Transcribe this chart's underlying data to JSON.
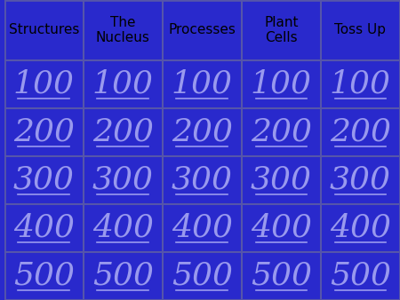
{
  "categories": [
    "Structures",
    "The\nNucleus",
    "Processes",
    "Plant\nCells",
    "Toss Up"
  ],
  "point_values": [
    100,
    200,
    300,
    400,
    500
  ],
  "bg_color": "#2929CC",
  "grid_color": "#5555AA",
  "header_text_color": "#000000",
  "value_text_color": "#9999EE",
  "header_fontsize": 11,
  "value_fontsize": 26,
  "fig_width": 4.5,
  "fig_height": 3.38,
  "dpi": 100
}
